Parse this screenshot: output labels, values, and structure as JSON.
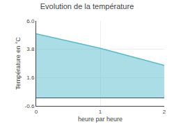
{
  "chart_data": {
    "type": "area",
    "title": "Evolution de la température",
    "xlabel": "heure par heure",
    "ylabel": "Température en °C",
    "x": [
      0,
      1,
      2
    ],
    "values": [
      5.0,
      3.88,
      2.55
    ],
    "color": "#55bbcc",
    "xlim": [
      0,
      2
    ],
    "ylim": [
      -0.6,
      6.0
    ],
    "xticks": [
      0,
      1,
      2
    ],
    "yticks": [
      -0.6,
      1.6,
      3.8,
      {
        "value": 6.0,
        "label": "6.0"
      }
    ],
    "grid": true
  }
}
